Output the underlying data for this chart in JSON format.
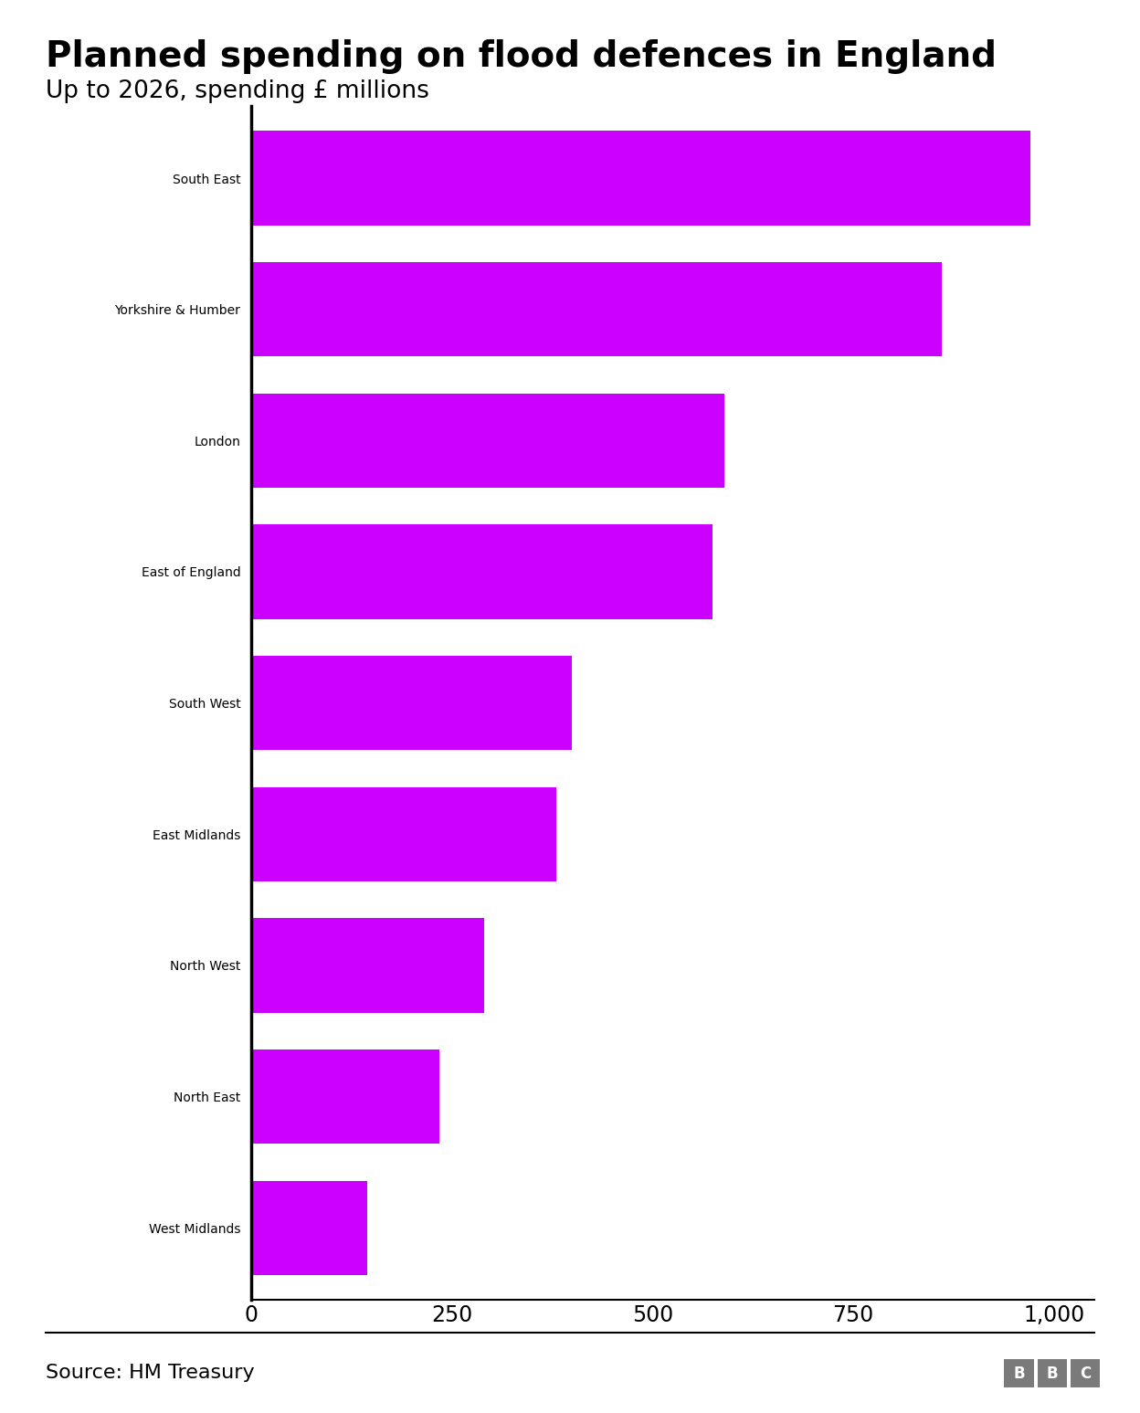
{
  "title": "Planned spending on flood defences in England",
  "subtitle": "Up to 2026, spending £ millions",
  "source": "Source: HM Treasury",
  "categories": [
    "South East",
    "Yorkshire & Humber",
    "London",
    "East of England",
    "South West",
    "East Midlands",
    "North West",
    "North East",
    "West Midlands"
  ],
  "values": [
    970,
    860,
    590,
    575,
    400,
    380,
    290,
    235,
    145
  ],
  "bar_color": "#cc00ff",
  "background_color": "#ffffff",
  "xlim": [
    0,
    1050
  ],
  "xticks": [
    0,
    250,
    500,
    750,
    1000
  ],
  "xticklabels": [
    "0",
    "250",
    "500",
    "750",
    "1,000"
  ],
  "title_fontsize": 28,
  "subtitle_fontsize": 19,
  "tick_fontsize": 17,
  "label_fontsize": 18,
  "source_fontsize": 16,
  "bar_height": 0.72
}
